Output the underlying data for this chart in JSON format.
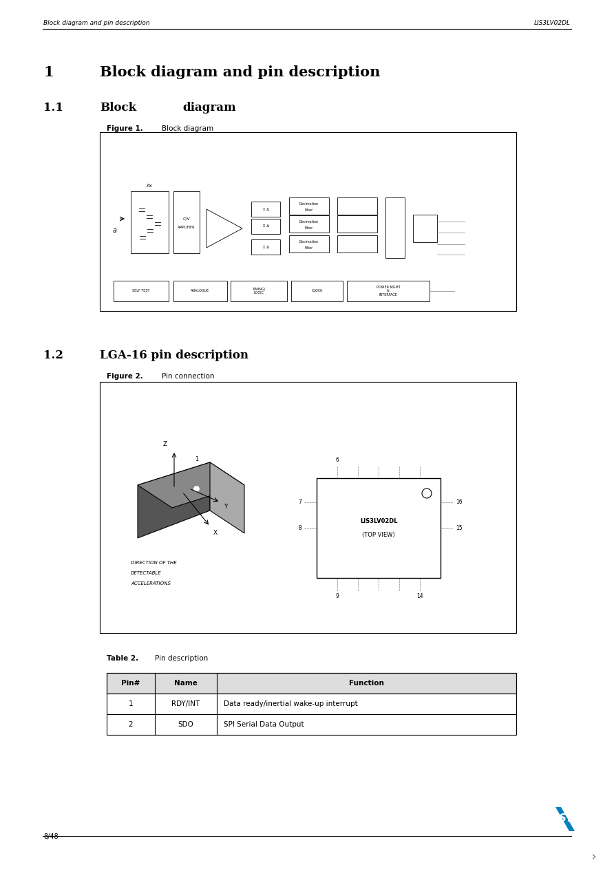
{
  "page_width": 8.92,
  "page_height": 12.63,
  "bg_color": "#ffffff",
  "header_left": "Block diagram and pin description",
  "header_right": "LIS3LV02DL",
  "footer_left": "8/48",
  "section1_num": "1",
  "section1_title": "Block diagram and pin description",
  "section2_num": "1.1",
  "section2_title_part1": "Block",
  "section2_title_part2": "diagram",
  "figure1_label": "Figure 1.",
  "figure1_title": "Block diagram",
  "section3_num": "1.2",
  "section3_title": "LGA-16 pin description",
  "figure2_label": "Figure 2.",
  "figure2_title": "Pin connection",
  "table2_label": "Table 2.",
  "table2_title": "Pin description",
  "table_headers": [
    "Pin#",
    "Name",
    "Function"
  ],
  "table_rows": [
    [
      "1",
      "RDY/INT",
      "Data ready/inertial wake-up interrupt"
    ],
    [
      "2",
      "SDO",
      "SPI Serial Data Output"
    ]
  ]
}
